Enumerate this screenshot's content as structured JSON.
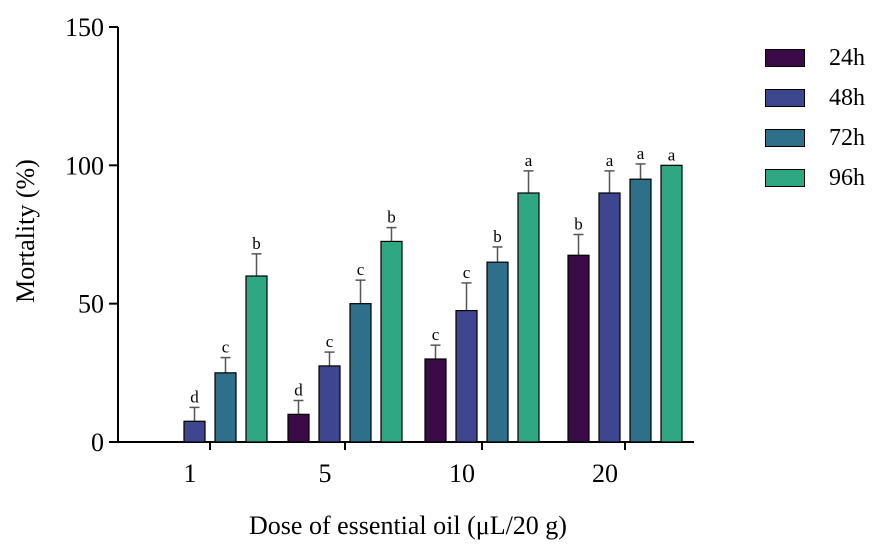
{
  "chart_data": {
    "type": "bar",
    "title": "",
    "xlabel": "Dose of essential oil (μL/20 g)",
    "ylabel": "Mortality (%)",
    "ylim": [
      0,
      150
    ],
    "yticks": [
      "0",
      "50",
      "100",
      "150"
    ],
    "categories": [
      "1",
      "5",
      "10",
      "20"
    ],
    "series": [
      {
        "name": "24h",
        "color": "#3a0b47",
        "values": [
          0,
          10,
          30,
          67.5
        ],
        "errors": [
          0,
          5,
          5,
          7.5
        ],
        "letters": [
          "",
          "d",
          "c",
          "b"
        ]
      },
      {
        "name": "48h",
        "color": "#3f4690",
        "values": [
          7.5,
          27.5,
          47.5,
          90
        ],
        "errors": [
          5,
          5,
          10,
          8
        ],
        "letters": [
          "d",
          "c",
          "c",
          "a"
        ]
      },
      {
        "name": "72h",
        "color": "#2e6f8a",
        "values": [
          25,
          50,
          65,
          95
        ],
        "errors": [
          5.5,
          8.5,
          5.5,
          5.5
        ],
        "letters": [
          "c",
          "c",
          "b",
          "a"
        ]
      },
      {
        "name": "96h",
        "color": "#2fa783",
        "values": [
          60,
          72.5,
          90,
          100
        ],
        "errors": [
          8,
          5,
          8,
          0
        ],
        "letters": [
          "b",
          "b",
          "a",
          "a"
        ]
      }
    ],
    "legend_position": "right",
    "grid": false
  }
}
